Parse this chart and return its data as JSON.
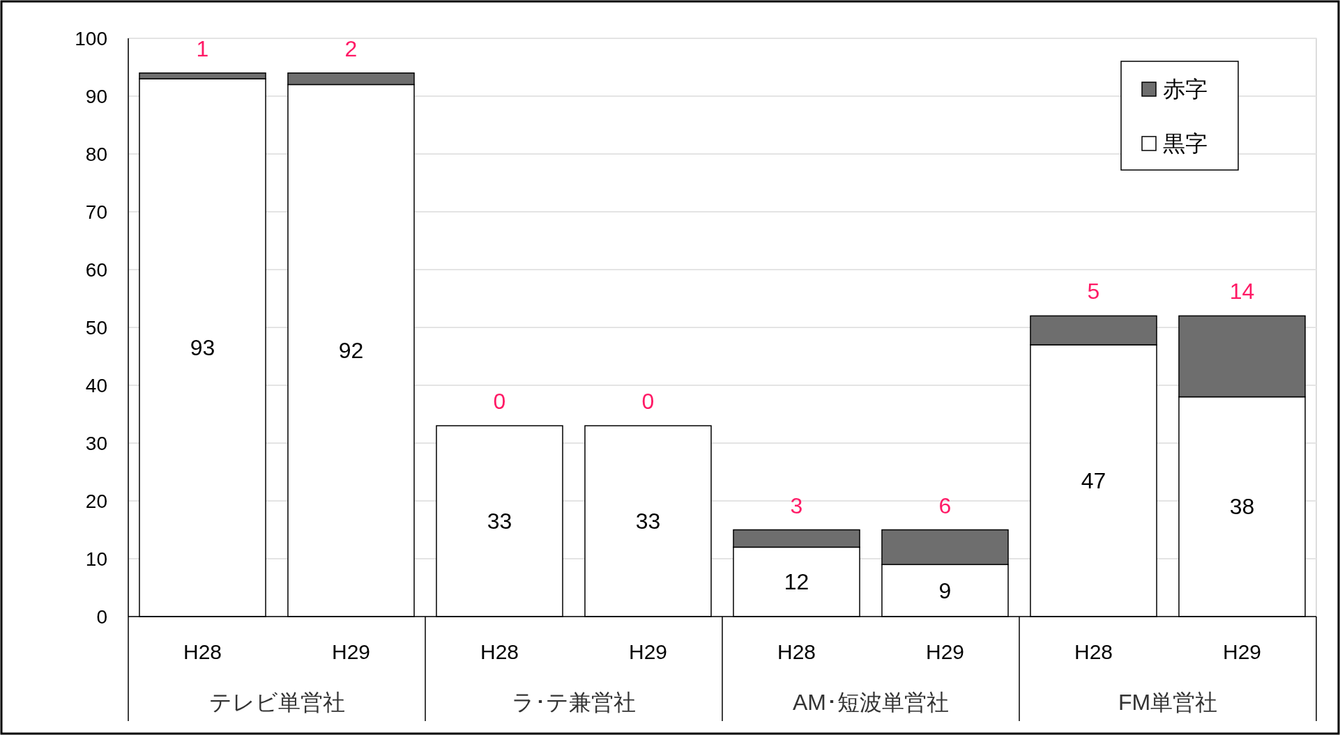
{
  "chart_data": {
    "type": "bar",
    "stacked": true,
    "categories": [
      "H28",
      "H29",
      "H28",
      "H29",
      "H28",
      "H29",
      "H28",
      "H29"
    ],
    "series": [
      {
        "name": "黒字",
        "color": "#ffffff",
        "values": [
          93,
          92,
          33,
          33,
          12,
          9,
          47,
          38
        ]
      },
      {
        "name": "赤字",
        "color": "#6e6e6e",
        "values": [
          1,
          2,
          0,
          0,
          3,
          6,
          5,
          14
        ]
      }
    ],
    "annotations": [
      "テレビ単営社",
      "ラ･テ兼営社",
      "AM･短波単営社",
      "FM単営社"
    ],
    "ylim": [
      0,
      100
    ],
    "yticks": [
      0,
      10,
      20,
      30,
      40,
      50,
      60,
      70,
      80,
      90,
      100
    ],
    "grid": "y",
    "legend": "top right",
    "data_labels": true
  }
}
